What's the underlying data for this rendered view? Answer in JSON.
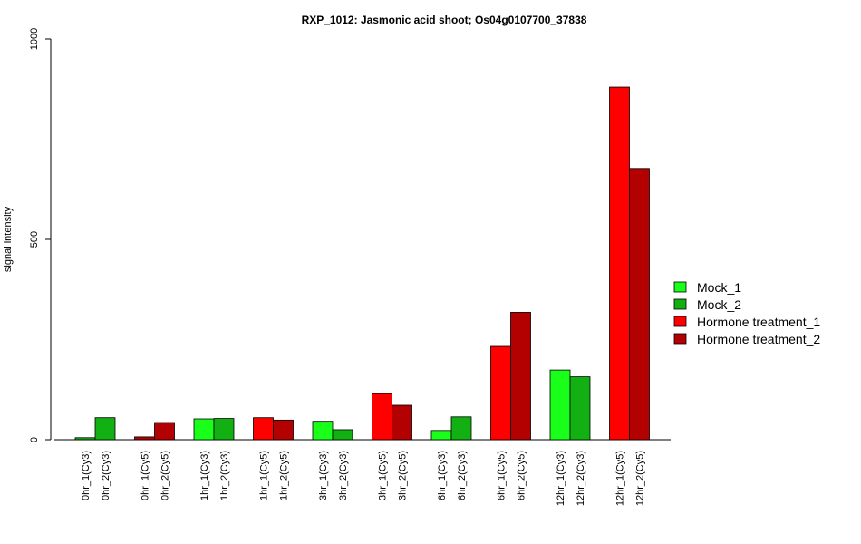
{
  "chart_data": {
    "type": "bar",
    "title": "RXP_1012: Jasmonic acid shoot; Os04g0107700_37838",
    "ylabel": "signal intensity",
    "xlabel": "",
    "ylim": [
      0,
      1000
    ],
    "yticks": [
      0,
      500,
      1000
    ],
    "grid": false,
    "legend_position": "right",
    "legend": [
      {
        "name": "Mock_1",
        "color": "#19ff19"
      },
      {
        "name": "Mock_2",
        "color": "#12b012"
      },
      {
        "name": "Hormone treatment_1",
        "color": "#ff0000"
      },
      {
        "name": "Hormone treatment_2",
        "color": "#b30000"
      }
    ],
    "groups": [
      {
        "bars": [
          {
            "label": "0hr_1(Cy3)",
            "value": 5,
            "color": "#12b012"
          },
          {
            "label": "0hr_2(Cy3)",
            "value": 55,
            "color": "#12b012"
          }
        ]
      },
      {
        "bars": [
          {
            "label": "0hr_1(Cy5)",
            "value": 7,
            "color": "#b30000"
          },
          {
            "label": "0hr_2(Cy5)",
            "value": 43,
            "color": "#b30000"
          }
        ]
      },
      {
        "bars": [
          {
            "label": "1hr_1(Cy3)",
            "value": 52,
            "color": "#19ff19"
          },
          {
            "label": "1hr_2(Cy3)",
            "value": 53,
            "color": "#12b012"
          }
        ]
      },
      {
        "bars": [
          {
            "label": "1hr_1(Cy5)",
            "value": 55,
            "color": "#ff0000"
          },
          {
            "label": "1hr_2(Cy5)",
            "value": 49,
            "color": "#b30000"
          }
        ]
      },
      {
        "bars": [
          {
            "label": "3hr_1(Cy3)",
            "value": 46,
            "color": "#19ff19"
          },
          {
            "label": "3hr_2(Cy3)",
            "value": 25,
            "color": "#12b012"
          }
        ]
      },
      {
        "bars": [
          {
            "label": "3hr_1(Cy5)",
            "value": 115,
            "color": "#ff0000"
          },
          {
            "label": "3hr_2(Cy5)",
            "value": 86,
            "color": "#b30000"
          }
        ]
      },
      {
        "bars": [
          {
            "label": "6hr_1(Cy3)",
            "value": 23,
            "color": "#19ff19"
          },
          {
            "label": "6hr_2(Cy3)",
            "value": 57,
            "color": "#12b012"
          }
        ]
      },
      {
        "bars": [
          {
            "label": "6hr_1(Cy5)",
            "value": 233,
            "color": "#ff0000"
          },
          {
            "label": "6hr_2(Cy5)",
            "value": 318,
            "color": "#b30000"
          }
        ]
      },
      {
        "bars": [
          {
            "label": "12hr_1(Cy3)",
            "value": 174,
            "color": "#19ff19"
          },
          {
            "label": "12hr_2(Cy3)",
            "value": 157,
            "color": "#12b012"
          }
        ]
      },
      {
        "bars": [
          {
            "label": "12hr_1(Cy5)",
            "value": 880,
            "color": "#ff0000"
          },
          {
            "label": "12hr_2(Cy5)",
            "value": 677,
            "color": "#b30000"
          }
        ]
      }
    ]
  }
}
